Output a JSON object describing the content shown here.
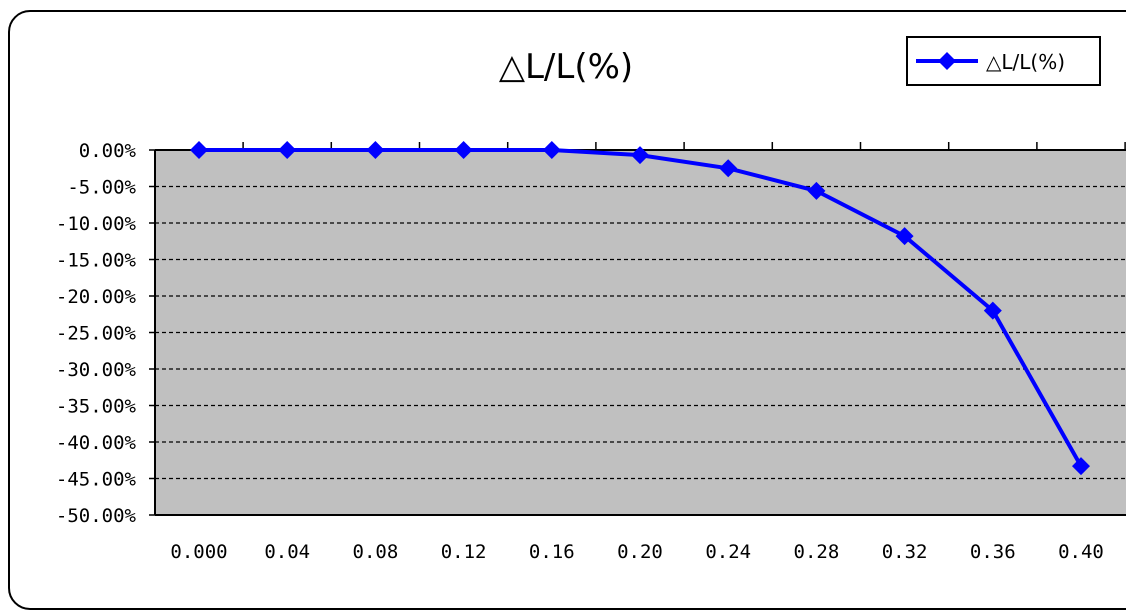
{
  "chart_data": {
    "type": "line",
    "title": "△L/L(%)",
    "xlabel": "",
    "ylabel": "",
    "categories": [
      "0.000",
      "0.04",
      "0.08",
      "0.12",
      "0.16",
      "0.20",
      "0.24",
      "0.28",
      "0.32",
      "0.36",
      "0.40"
    ],
    "y_tick_labels": [
      "0.00%",
      "-5.00%",
      "-10.00%",
      "-15.00%",
      "-20.00%",
      "-25.00%",
      "-30.00%",
      "-35.00%",
      "-40.00%",
      "-45.00%",
      "-50.00%"
    ],
    "ylim": [
      -50,
      0
    ],
    "y_unit": "%",
    "series": [
      {
        "name": "△L/L(%)",
        "color": "#0000ff",
        "marker": "diamond",
        "values": [
          0.0,
          0.0,
          0.0,
          0.0,
          0.0,
          -0.7,
          -2.5,
          -5.6,
          -11.8,
          -22.0,
          -43.3
        ]
      }
    ],
    "plot_background": "#c0c0c0",
    "grid": true,
    "grid_style": "dashed-horizontal",
    "legend_position": "top-right"
  }
}
